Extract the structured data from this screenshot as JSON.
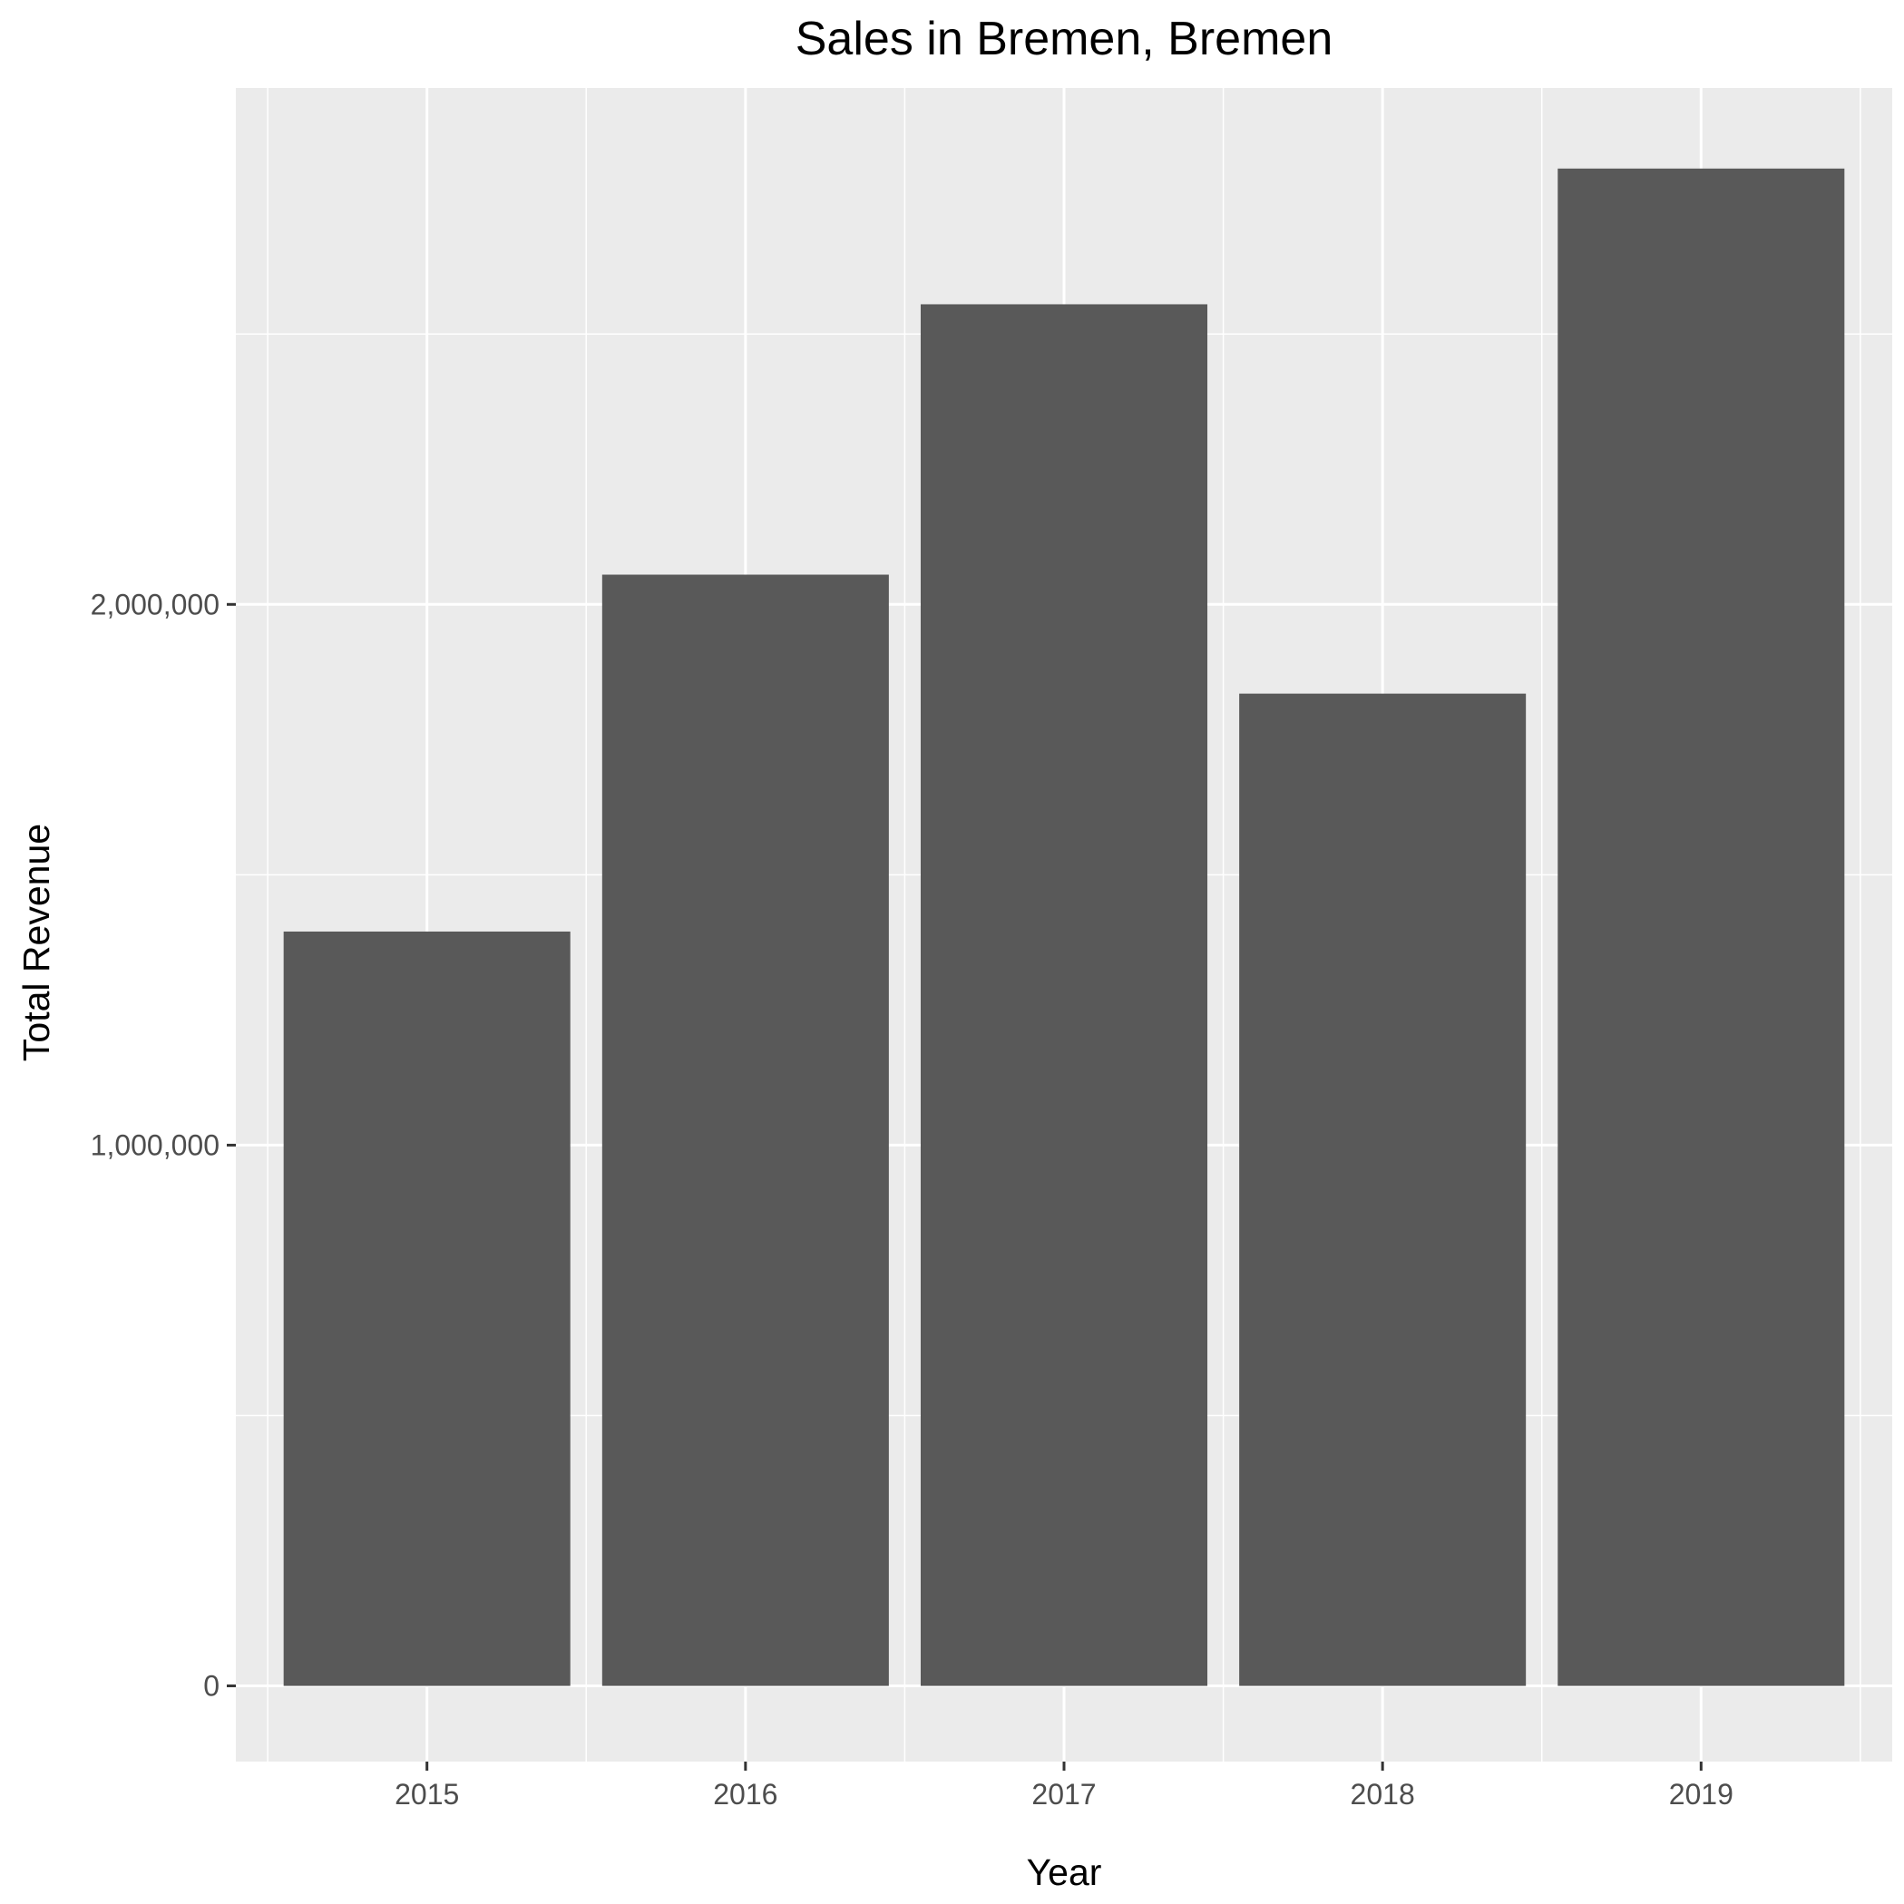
{
  "chart_data": {
    "type": "bar",
    "title": "Sales in Bremen, Bremen",
    "xlabel": "Year",
    "ylabel": "Total Revenue",
    "categories": [
      "2015",
      "2016",
      "2017",
      "2018",
      "2019"
    ],
    "values": [
      1395000,
      2055000,
      2555000,
      1835000,
      2806000
    ],
    "ylim": [
      -140000,
      2955000
    ],
    "yticks": [
      0,
      1000000,
      2000000
    ],
    "ytick_labels": [
      "0",
      "1,000,000",
      "2,000,000"
    ],
    "grid": true,
    "legend": "none",
    "colors": {
      "bar": "#595959",
      "panel": "#ebebeb",
      "grid": "#ffffff",
      "tick_text": "#4d4d4d",
      "tick_mark": "#333333"
    }
  }
}
